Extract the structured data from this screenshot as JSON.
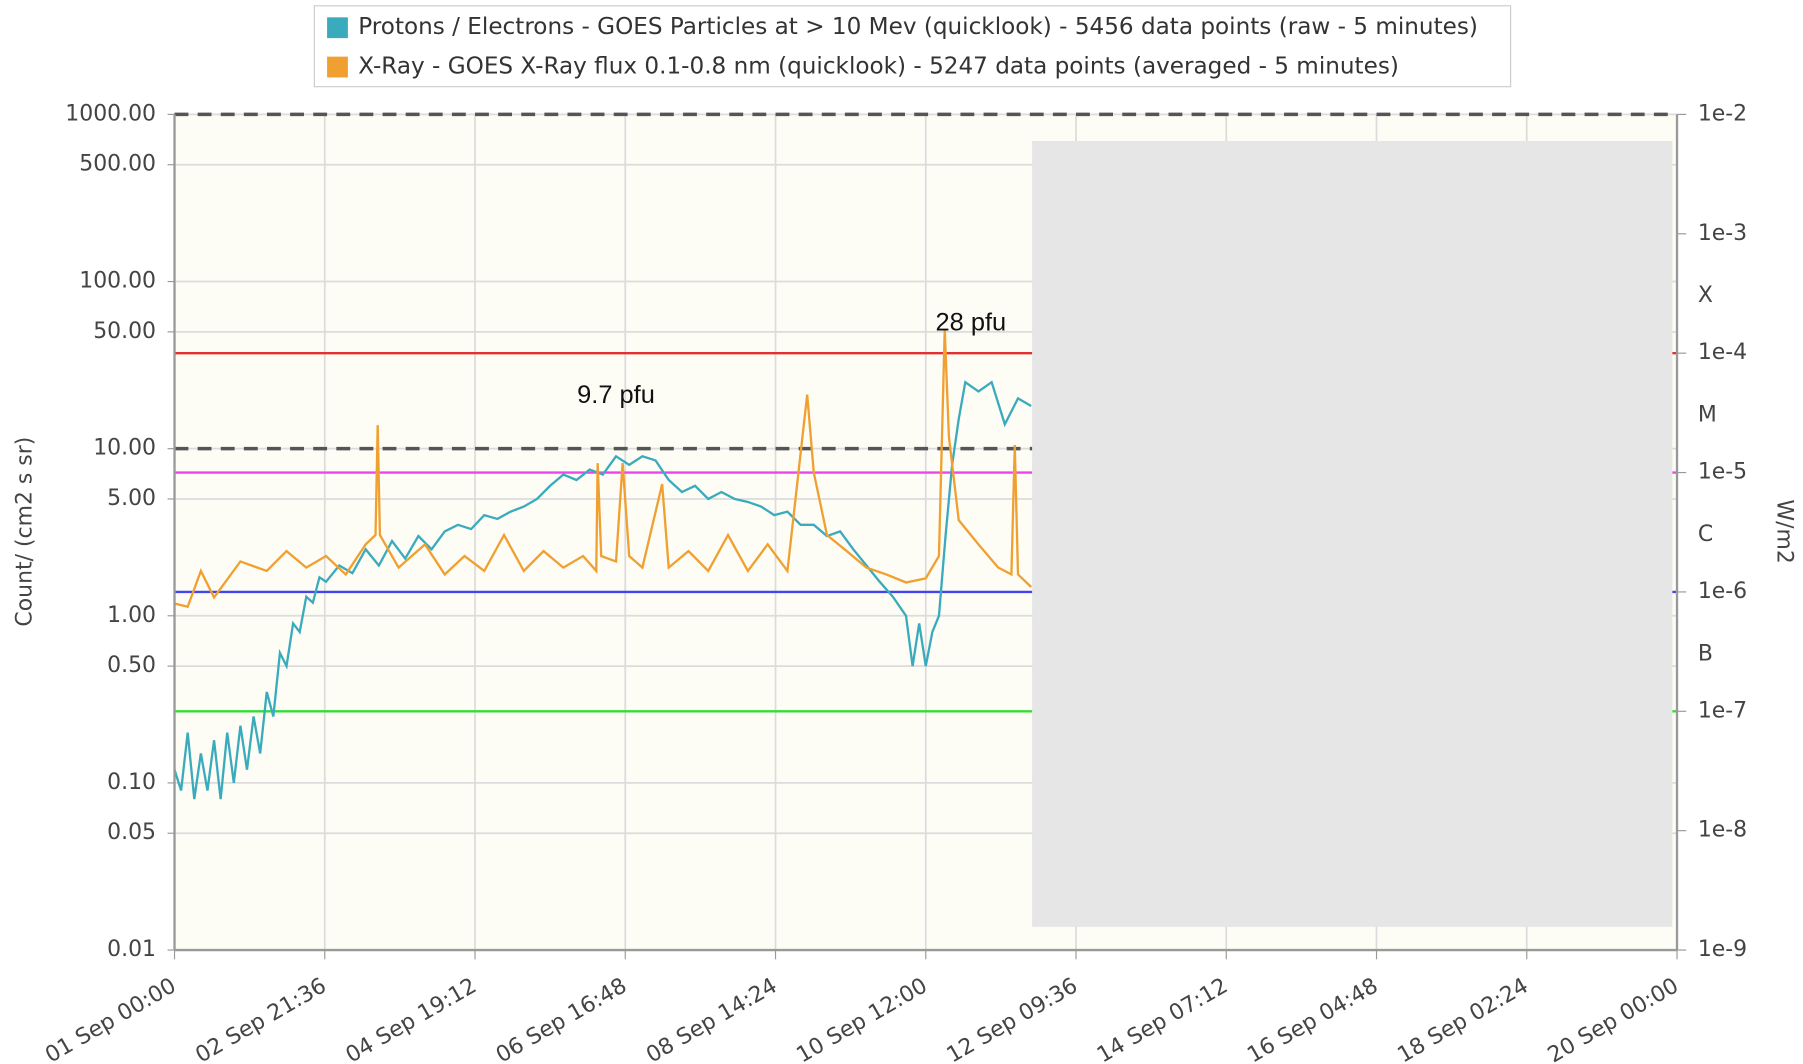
{
  "chart_data": {
    "type": "line",
    "log_scale": true,
    "grid": true,
    "ylabel": "Count/ (cm2 s sr)",
    "y2label": "W/m2",
    "xlim": [
      "01 Sep 00:00",
      "20 Sep 00:00"
    ],
    "xticks": [
      "01 Sep 00:00",
      "02 Sep 21:36",
      "04 Sep 19:12",
      "06 Sep 16:48",
      "08 Sep 14:24",
      "10 Sep 12:00",
      "12 Sep 09:36",
      "14 Sep 07:12",
      "16 Sep 04:48",
      "18 Sep 02:24",
      "20 Sep 00:00"
    ],
    "ylim": [
      0.01,
      1000
    ],
    "yticks": [
      {
        "value": 1000,
        "label": "1000.00"
      },
      {
        "value": 500,
        "label": "500.00"
      },
      {
        "value": 100,
        "label": "100.00"
      },
      {
        "value": 50,
        "label": "50.00"
      },
      {
        "value": 10,
        "label": "10.00"
      },
      {
        "value": 5,
        "label": "5.00"
      },
      {
        "value": 1,
        "label": "1.00"
      },
      {
        "value": 0.5,
        "label": "0.50"
      },
      {
        "value": 0.1,
        "label": "0.10"
      },
      {
        "value": 0.05,
        "label": "0.05"
      },
      {
        "value": 0.01,
        "label": "0.01"
      }
    ],
    "y2lim": [
      1e-09,
      0.01
    ],
    "y2ticks": [
      {
        "value": 0.01,
        "label": "1e-2"
      },
      {
        "value": 0.001,
        "label": "1e-3"
      },
      {
        "value": 0.0001,
        "label": "1e-4"
      },
      {
        "value": 1e-05,
        "label": "1e-5"
      },
      {
        "value": 1e-06,
        "label": "1e-6"
      },
      {
        "value": 1e-07,
        "label": "1e-7"
      },
      {
        "value": 1e-08,
        "label": "1e-8"
      },
      {
        "value": 1e-09,
        "label": "1e-9"
      }
    ],
    "y2_class_labels": [
      {
        "value": 0.0003,
        "label": "X"
      },
      {
        "value": 3e-05,
        "label": "M"
      },
      {
        "value": 3e-06,
        "label": "C"
      },
      {
        "value": 3e-07,
        "label": "B"
      }
    ],
    "reference_lines": [
      {
        "axis": "y",
        "value": 1000,
        "color": "#555555",
        "dashed": true
      },
      {
        "axis": "y",
        "value": 10,
        "color": "#555555",
        "dashed": true
      },
      {
        "axis": "y2",
        "value": 0.0001,
        "color": "#e03030",
        "dashed": false
      },
      {
        "axis": "y2",
        "value": 1e-05,
        "color": "#ee44ee",
        "dashed": false
      },
      {
        "axis": "y2",
        "value": 1e-06,
        "color": "#4444ee",
        "dashed": false
      },
      {
        "axis": "y2",
        "value": 1e-07,
        "color": "#33dd33",
        "dashed": false
      }
    ],
    "annotations": [
      "9.7 pfu",
      "28 pfu"
    ],
    "series": [
      {
        "name": "Protons / Electrons - GOES Particles at > 10 Mev (quicklook) - 5456 data points (raw - 5 minutes)",
        "color": "#3aabbd",
        "axis": "y",
        "x": [
          "01 Sep 00:00",
          "01 Sep 02:00",
          "01 Sep 04:00",
          "01 Sep 06:00",
          "01 Sep 08:00",
          "01 Sep 10:00",
          "01 Sep 12:00",
          "01 Sep 14:00",
          "01 Sep 16:00",
          "01 Sep 18:00",
          "01 Sep 20:00",
          "01 Sep 22:00",
          "02 Sep 00:00",
          "02 Sep 02:00",
          "02 Sep 04:00",
          "02 Sep 06:00",
          "02 Sep 08:00",
          "02 Sep 10:00",
          "02 Sep 12:00",
          "02 Sep 14:00",
          "02 Sep 16:00",
          "02 Sep 18:00",
          "02 Sep 20:00",
          "02 Sep 22:00",
          "03 Sep 02:00",
          "03 Sep 06:00",
          "03 Sep 10:00",
          "03 Sep 14:00",
          "03 Sep 18:00",
          "03 Sep 22:00",
          "04 Sep 02:00",
          "04 Sep 06:00",
          "04 Sep 10:00",
          "04 Sep 14:00",
          "04 Sep 18:00",
          "04 Sep 22:00",
          "05 Sep 02:00",
          "05 Sep 06:00",
          "05 Sep 10:00",
          "05 Sep 14:00",
          "05 Sep 18:00",
          "05 Sep 22:00",
          "06 Sep 02:00",
          "06 Sep 06:00",
          "06 Sep 10:00",
          "06 Sep 14:00",
          "06 Sep 18:00",
          "06 Sep 22:00",
          "07 Sep 02:00",
          "07 Sep 06:00",
          "07 Sep 10:00",
          "07 Sep 14:00",
          "07 Sep 18:00",
          "07 Sep 22:00",
          "08 Sep 02:00",
          "08 Sep 06:00",
          "08 Sep 10:00",
          "08 Sep 14:00",
          "08 Sep 18:00",
          "08 Sep 22:00",
          "09 Sep 02:00",
          "09 Sep 06:00",
          "09 Sep 10:00",
          "09 Sep 14:00",
          "09 Sep 18:00",
          "09 Sep 22:00",
          "10 Sep 02:00",
          "10 Sep 06:00",
          "10 Sep 08:00",
          "10 Sep 10:00",
          "10 Sep 12:00",
          "10 Sep 14:00",
          "10 Sep 16:00",
          "10 Sep 18:00",
          "10 Sep 20:00",
          "10 Sep 22:00",
          "11 Sep 00:00",
          "11 Sep 04:00",
          "11 Sep 08:00",
          "11 Sep 12:00",
          "11 Sep 16:00",
          "11 Sep 20:00"
        ],
        "values": [
          0.12,
          0.09,
          0.2,
          0.08,
          0.15,
          0.09,
          0.18,
          0.08,
          0.2,
          0.1,
          0.22,
          0.12,
          0.25,
          0.15,
          0.35,
          0.25,
          0.6,
          0.5,
          0.9,
          0.8,
          1.3,
          1.2,
          1.7,
          1.6,
          2.0,
          1.8,
          2.5,
          2.0,
          2.8,
          2.2,
          3.0,
          2.5,
          3.2,
          3.5,
          3.3,
          4.0,
          3.8,
          4.2,
          4.5,
          5.0,
          6.0,
          7.0,
          6.5,
          7.5,
          7.0,
          9.0,
          8.0,
          9.0,
          8.5,
          6.5,
          5.5,
          6.0,
          5.0,
          5.5,
          5.0,
          4.8,
          4.5,
          4.0,
          4.2,
          3.5,
          3.5,
          3.0,
          3.2,
          2.5,
          2.0,
          1.6,
          1.3,
          1.0,
          0.5,
          0.9,
          0.5,
          0.8,
          1.0,
          3.0,
          8.0,
          15,
          25,
          22,
          25,
          14,
          20,
          18
        ]
      },
      {
        "name": "X-Ray - GOES X-Ray flux 0.1-0.8 nm (quicklook) - 5247 data points (averaged - 5 minutes)",
        "color": "#f0a030",
        "axis": "y2",
        "x": [
          "01 Sep 00:00",
          "01 Sep 04:00",
          "01 Sep 08:00",
          "01 Sep 12:00",
          "01 Sep 20:00",
          "02 Sep 04:00",
          "02 Sep 10:00",
          "02 Sep 16:00",
          "02 Sep 22:00",
          "03 Sep 04:00",
          "03 Sep 10:00",
          "03 Sep 13:00",
          "03 Sep 13:40",
          "03 Sep 14:20",
          "03 Sep 20:00",
          "04 Sep 04:00",
          "04 Sep 10:00",
          "04 Sep 16:00",
          "04 Sep 22:00",
          "05 Sep 04:00",
          "05 Sep 10:00",
          "05 Sep 16:00",
          "05 Sep 22:00",
          "06 Sep 04:00",
          "06 Sep 08:00",
          "06 Sep 08:24",
          "06 Sep 09:30",
          "06 Sep 14:00",
          "06 Sep 16:00",
          "06 Sep 18:00",
          "06 Sep 22:00",
          "07 Sep 04:00",
          "07 Sep 06:00",
          "07 Sep 12:00",
          "07 Sep 18:00",
          "08 Sep 00:00",
          "08 Sep 06:00",
          "08 Sep 12:00",
          "08 Sep 18:00",
          "09 Sep 00:00",
          "09 Sep 02:00",
          "09 Sep 06:00",
          "09 Sep 12:00",
          "09 Sep 18:00",
          "10 Sep 00:00",
          "10 Sep 06:00",
          "10 Sep 12:00",
          "10 Sep 16:00",
          "10 Sep 17:45",
          "10 Sep 19:00",
          "10 Sep 22:00",
          "11 Sep 04:00",
          "11 Sep 10:00",
          "11 Sep 14:00",
          "11 Sep 15:00",
          "11 Sep 16:00",
          "11 Sep 20:00"
        ],
        "values": [
          8e-07,
          7.5e-07,
          1.5e-06,
          9e-07,
          1.8e-06,
          1.5e-06,
          2.2e-06,
          1.6e-06,
          2e-06,
          1.4e-06,
          2.5e-06,
          3e-06,
          2.5e-05,
          3e-06,
          1.6e-06,
          2.5e-06,
          1.4e-06,
          2e-06,
          1.5e-06,
          3e-06,
          1.5e-06,
          2.2e-06,
          1.6e-06,
          2e-06,
          1.5e-06,
          1.2e-05,
          2e-06,
          1.8e-06,
          1.2e-05,
          2e-06,
          1.6e-06,
          8e-06,
          1.6e-06,
          2.2e-06,
          1.5e-06,
          3e-06,
          1.5e-06,
          2.5e-06,
          1.5e-06,
          4.5e-05,
          1e-05,
          3e-06,
          2.2e-06,
          1.6e-06,
          1.4e-06,
          1.2e-06,
          1.3e-06,
          2e-06,
          0.000158,
          2e-05,
          4e-06,
          2.5e-06,
          1.6e-06,
          1.4e-06,
          1.7e-05,
          1.4e-06,
          1.1e-06
        ]
      }
    ]
  }
}
